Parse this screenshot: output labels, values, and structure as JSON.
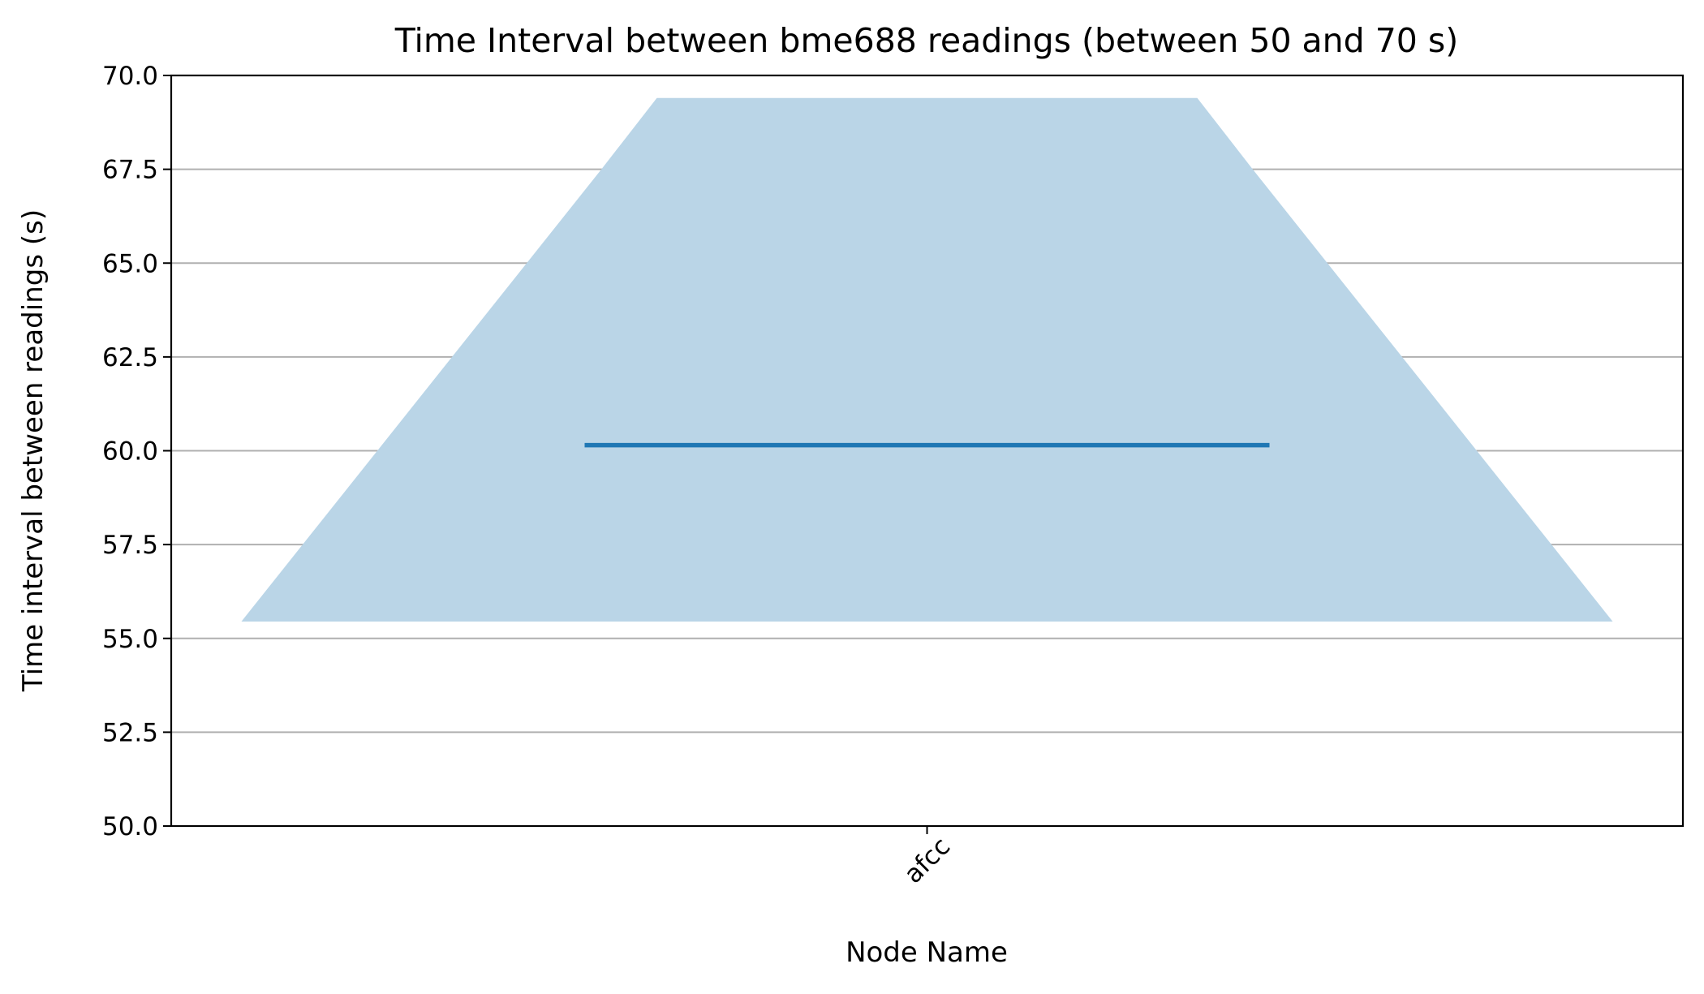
{
  "chart_data": {
    "type": "violin",
    "title": "Time Interval between bme688 readings (between 50 and 70 s)",
    "xlabel": "Node Name",
    "ylabel": "Time interval between readings (s)",
    "categories": [
      "afcc"
    ],
    "category_label_rotation": "45 degrees",
    "ylim": [
      50.0,
      70.0
    ],
    "yticks": [
      "50.0",
      "52.5",
      "55.0",
      "57.5",
      "60.0",
      "62.5",
      "65.0",
      "67.5",
      "70.0"
    ],
    "grid": "horizontal",
    "series": [
      {
        "category": "afcc",
        "min": 55.45,
        "max": 69.4,
        "median": 60.15,
        "top_plateau_from": 67.5,
        "color": "#1f77b4",
        "fill_color": "#bad5e7"
      }
    ]
  }
}
